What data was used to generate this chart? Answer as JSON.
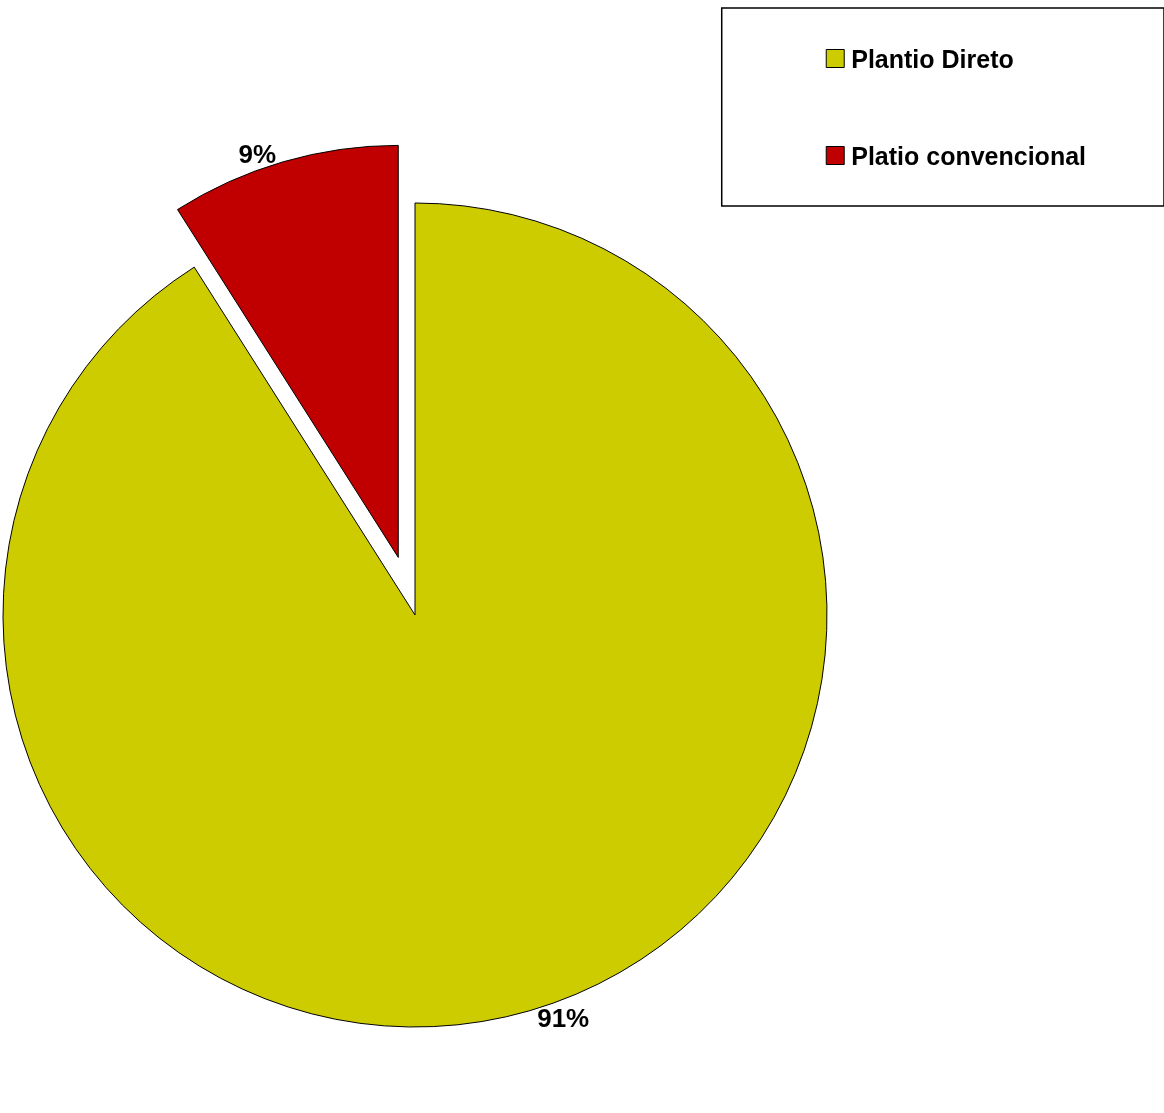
{
  "chart_data": {
    "type": "pie",
    "categories": [
      "Plantio Direto",
      "Platio convencional"
    ],
    "values": [
      91,
      9
    ],
    "value_labels": [
      "91%",
      "9%"
    ],
    "colors": [
      "#cccc00",
      "#c00000"
    ],
    "legend": "top right"
  }
}
